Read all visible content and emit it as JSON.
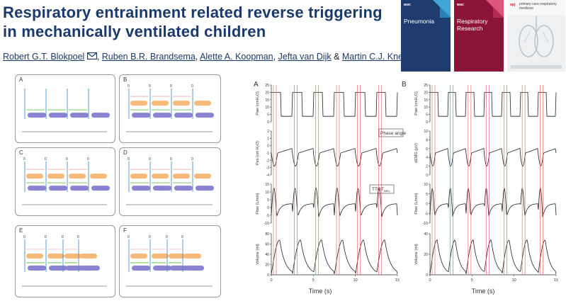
{
  "title": "Respiratory entrainment related reverse triggering in mechanically ventilated children",
  "authors": [
    "Robert G.T. Blokpoel",
    "Ruben B.R. Brandsema",
    "Alette A. Koopman",
    "Jefta van Dijk",
    "Martin C.J. Kneyber"
  ],
  "author_separators": [
    ", ",
    ", ",
    ", ",
    " & "
  ],
  "email_icon": "mail-icon",
  "covers": [
    {
      "brand": "BMC",
      "name": "Pneumonia"
    },
    {
      "brand": "BMC",
      "name": "Respiratory Research"
    },
    {
      "brand": "npj",
      "name": "primary care respiratory medicine"
    }
  ],
  "panel_labels": [
    "A",
    "B",
    "C",
    "D",
    "E",
    "F"
  ],
  "marker_zero": "0",
  "figure_a": {
    "label": "A",
    "ylabels": [
      "Paw (cmH₂O)",
      "Pes (cm H₂O)",
      "Flow (L/min)",
      "Volume (ml)"
    ],
    "xlabel": "Time (s)",
    "xticks": [
      "0",
      "5",
      "10",
      "15"
    ],
    "yticks": [
      [
        "25",
        "20",
        "15",
        "10",
        "5",
        "0"
      ],
      [
        "2",
        "1",
        "0",
        "-1",
        "-2",
        "-3",
        "-4"
      ],
      [
        "15",
        "10",
        "5",
        "0",
        "-5",
        "-10"
      ],
      [
        "80",
        "60",
        "40",
        "20",
        "0"
      ]
    ],
    "annotations": [
      "Phase angle",
      "TTOT"
    ],
    "annotation_sub": "NEU"
  },
  "figure_b": {
    "label": "B",
    "ylabels": [
      "Paw (cmH₂O)",
      "dEMG (μV)",
      "Flow (L/min)",
      "Volume (ml)"
    ],
    "xlabel": "Time (s)",
    "xticks": [
      "0",
      "5",
      "10",
      "15"
    ],
    "yticks": [
      [
        "25",
        "20",
        "15",
        "10",
        "5",
        "0"
      ],
      [
        "10",
        "8",
        "6",
        "4",
        "2",
        "0"
      ],
      [
        "10",
        "5",
        "0",
        "-5",
        "-10"
      ],
      [
        "40",
        "20",
        "0"
      ]
    ]
  }
}
